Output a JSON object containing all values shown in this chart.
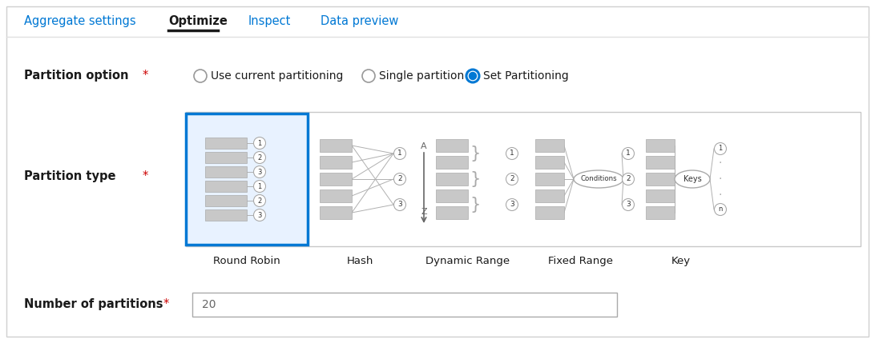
{
  "bg_color": "#ffffff",
  "border_color": "#d0d0d0",
  "tab_names": [
    "Aggregate settings",
    "Optimize",
    "Inspect",
    "Data preview"
  ],
  "tab_active": 1,
  "tab_active_color": "#1a1a1a",
  "tab_inactive_color": "#0078d4",
  "tab_underline_color": "#1a1a1a",
  "separator_color": "#e0e0e0",
  "partition_option_label": "Partition option",
  "radio_options": [
    "Use current partitioning",
    "Single partition",
    "Set Partitioning"
  ],
  "radio_selected": 2,
  "radio_color_active": "#0078d4",
  "radio_color_inactive": "#999999",
  "partition_type_label": "Partition type",
  "partition_types": [
    "Round Robin",
    "Hash",
    "Dynamic Range",
    "Fixed Range",
    "Key"
  ],
  "partition_selected": 0,
  "number_label": "Number of partitions",
  "number_value": "20",
  "asterisk_color": "#cc0000",
  "label_color": "#1a1a1a",
  "selected_box_color": "#0078d4",
  "selected_box_fill": "#e8f2ff",
  "diagram_border": "#c8c8c8",
  "bar_color": "#c8c8c8",
  "bar_edge": "#aaaaaa",
  "line_color": "#b0b0b0",
  "circle_edge": "#aaaaaa",
  "input_border": "#aaaaaa",
  "text_dark": "#333333",
  "text_mid": "#666666"
}
